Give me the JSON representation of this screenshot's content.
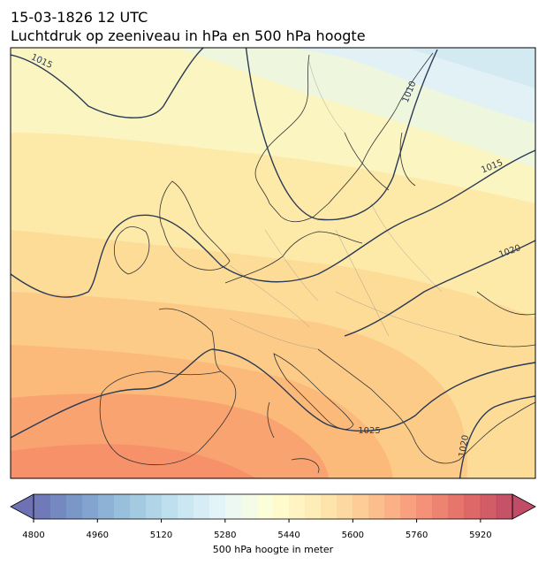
{
  "title": "15-03-1826 12 UTC",
  "subtitle": "Luchtdruk op zeeniveau in hPa en 500 hPa hoogte",
  "isobar_labels": [
    1015,
    1010,
    1015,
    1020,
    1025,
    1020
  ],
  "colorbar": {
    "lim": [
      4800,
      6000
    ],
    "step": 40,
    "ticks": [
      4800,
      4960,
      5120,
      5280,
      5440,
      5600,
      5760,
      5920
    ],
    "label": "500 hPa hoogte in meter",
    "colormap": [
      "#313695",
      "#4575b4",
      "#74add1",
      "#abd9e9",
      "#e0f3f8",
      "#ffffbf",
      "#fee090",
      "#fdae61",
      "#f46d43",
      "#d73027",
      "#a50026"
    ],
    "alpha": 0.7
  }
}
